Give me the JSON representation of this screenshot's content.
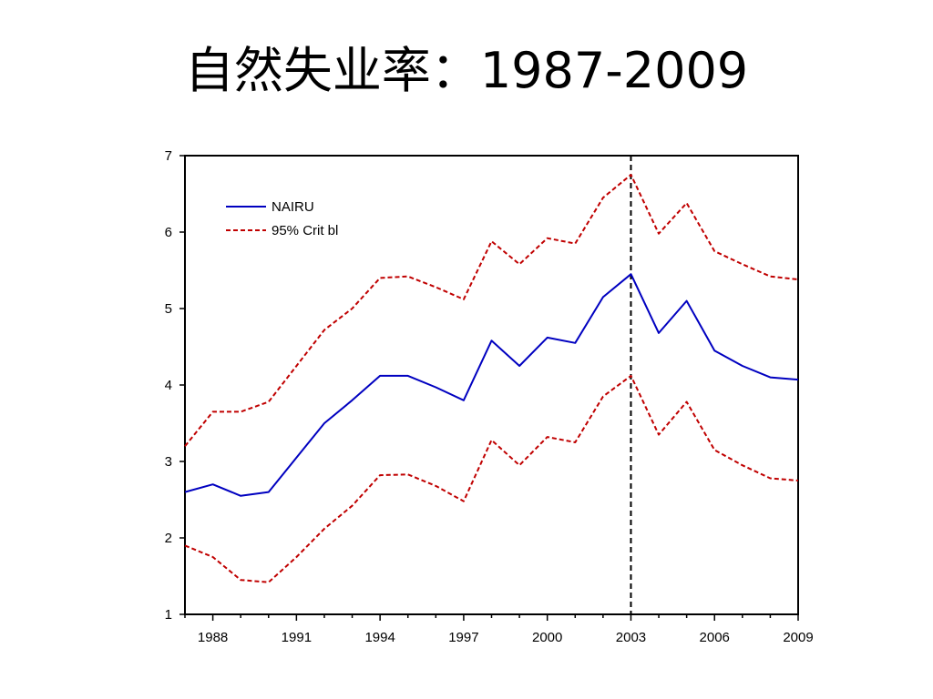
{
  "slide": {
    "title": "自然失业率：1987-2009"
  },
  "chart_data": {
    "type": "line",
    "title": "",
    "xlabel": "",
    "ylabel": "",
    "xlim": [
      1987,
      2009
    ],
    "ylim": [
      1,
      7
    ],
    "x_ticks": [
      1988,
      1991,
      1994,
      1997,
      2000,
      2003,
      2006,
      2009
    ],
    "y_ticks": [
      1,
      2,
      3,
      4,
      5,
      6,
      7
    ],
    "legend_position": "top-left",
    "grid": false,
    "reference_line": {
      "x": 2003,
      "style": "dashed",
      "color": "#000000"
    },
    "x": [
      1987,
      1988,
      1989,
      1990,
      1991,
      1992,
      1993,
      1994,
      1995,
      1996,
      1997,
      1998,
      1999,
      2000,
      2001,
      2002,
      2003,
      2004,
      2005,
      2006,
      2007,
      2008,
      2009
    ],
    "series": [
      {
        "name": "NAIRU",
        "color": "#0000c0",
        "dash": "solid",
        "values": [
          2.6,
          2.7,
          2.55,
          2.6,
          3.05,
          3.5,
          3.8,
          4.12,
          4.12,
          3.97,
          3.8,
          4.58,
          4.25,
          4.62,
          4.55,
          5.15,
          5.45,
          4.68,
          5.1,
          4.45,
          4.25,
          4.1,
          4.07
        ]
      },
      {
        "name": "95% Crit bl",
        "color": "#c00000",
        "dash": "dashed",
        "values": [
          3.2,
          3.65,
          3.65,
          3.78,
          4.25,
          4.72,
          5.0,
          5.4,
          5.42,
          5.28,
          5.12,
          5.88,
          5.58,
          5.92,
          5.85,
          6.45,
          6.75,
          5.98,
          6.38,
          5.75,
          5.58,
          5.42,
          5.38
        ]
      },
      {
        "name": "",
        "color": "#c00000",
        "dash": "dashed",
        "values": [
          1.9,
          1.75,
          1.45,
          1.42,
          1.75,
          2.12,
          2.42,
          2.82,
          2.83,
          2.68,
          2.48,
          3.28,
          2.95,
          3.32,
          3.25,
          3.85,
          4.12,
          3.35,
          3.78,
          3.15,
          2.95,
          2.78,
          2.75
        ]
      }
    ]
  }
}
